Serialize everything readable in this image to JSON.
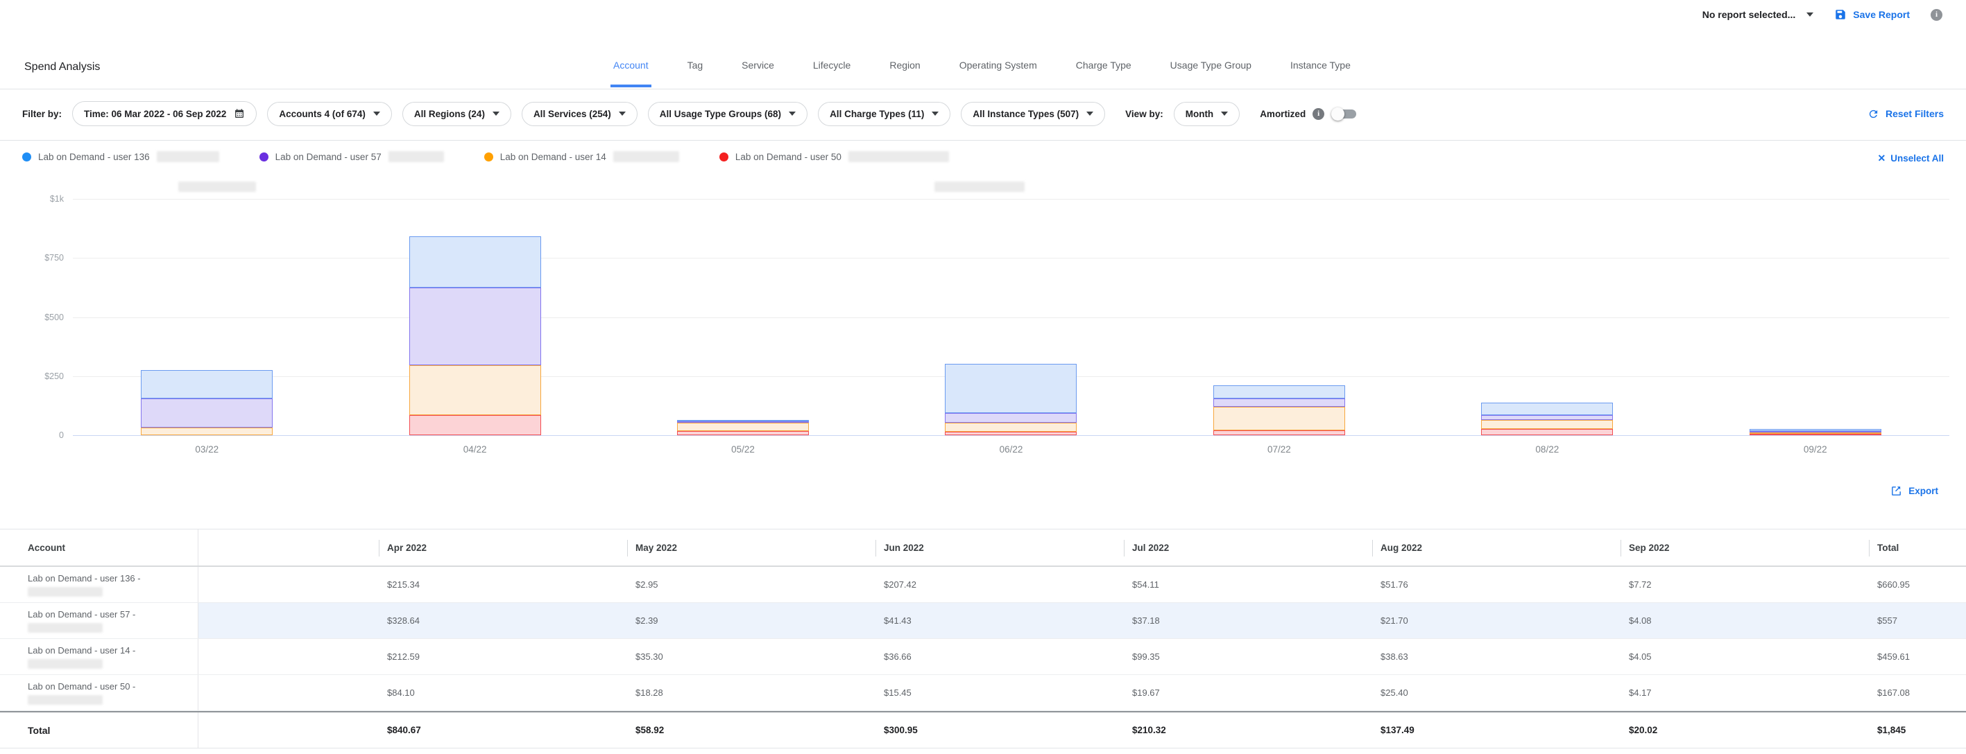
{
  "header": {
    "report_selector": "No report selected...",
    "save_report_label": "Save Report",
    "title": "Spend Analysis",
    "tabs": [
      {
        "label": "Account",
        "active": true
      },
      {
        "label": "Tag",
        "active": false
      },
      {
        "label": "Service",
        "active": false
      },
      {
        "label": "Lifecycle",
        "active": false
      },
      {
        "label": "Region",
        "active": false
      },
      {
        "label": "Operating System",
        "active": false
      },
      {
        "label": "Charge Type",
        "active": false
      },
      {
        "label": "Usage Type Group",
        "active": false
      },
      {
        "label": "Instance Type",
        "active": false
      }
    ]
  },
  "filter_bar": {
    "label": "Filter by:",
    "pills": [
      {
        "label": "Time: 06 Mar 2022 - 06 Sep 2022",
        "icon": "calendar-icon"
      },
      {
        "label": "Accounts 4 (of 674)",
        "icon": "caret-down-icon"
      },
      {
        "label": "All Regions (24)",
        "icon": "caret-down-icon"
      },
      {
        "label": "All Services (254)",
        "icon": "caret-down-icon"
      },
      {
        "label": "All Usage Type Groups (68)",
        "icon": "caret-down-icon"
      },
      {
        "label": "All Charge Types (11)",
        "icon": "caret-down-icon"
      },
      {
        "label": "All Instance Types (507)",
        "icon": "caret-down-icon"
      }
    ],
    "view_by_label": "View by:",
    "view_by_value": "Month",
    "amortized_label": "Amortized",
    "amortized_on": false,
    "reset_label": "Reset Filters"
  },
  "legend": {
    "unselect_all_label": "Unselect All",
    "items": [
      {
        "label": "Lab on Demand - user 136",
        "color": "#1f8ef5",
        "redact_width": 90
      },
      {
        "label": "Lab on Demand - user 57",
        "color": "#6a2fe0",
        "redact_width": 80
      },
      {
        "label": "Lab on Demand - user 14",
        "color": "#ffa000",
        "redact_width": 95
      },
      {
        "label": "Lab on Demand - user 50",
        "color": "#f42020",
        "redact_width": 145
      }
    ]
  },
  "chart_data": {
    "type": "bar",
    "stacked": true,
    "stack_order": "bottom-to-top",
    "categories": [
      "03/22",
      "04/22",
      "05/22",
      "06/22",
      "07/22",
      "08/22",
      "09/22"
    ],
    "series": [
      {
        "name": "Lab on Demand - user 50",
        "stroke": "#f34d52",
        "fill": "#fcd3d6",
        "values": [
          0.01,
          84.1,
          18.28,
          15.45,
          19.67,
          25.4,
          4.17
        ]
      },
      {
        "name": "Lab on Demand - user 14",
        "stroke": "#f7a73e",
        "fill": "#fdeedb",
        "values": [
          33.03,
          212.59,
          35.3,
          36.66,
          99.35,
          38.63,
          4.05
        ]
      },
      {
        "name": "Lab on Demand - user 57",
        "stroke": "#8374ee",
        "fill": "#ded9f9",
        "values": [
          121.58,
          328.64,
          2.39,
          41.43,
          37.18,
          21.7,
          4.08
        ]
      },
      {
        "name": "Lab on Demand - user 136",
        "stroke": "#6b9bf0",
        "fill": "#d9e7fb",
        "values": [
          121.65,
          215.34,
          2.95,
          207.42,
          54.11,
          51.76,
          7.72
        ]
      }
    ],
    "yticks": [
      "$1k",
      "$750",
      "$500",
      "$250",
      "0"
    ],
    "ylim": [
      0,
      1000
    ],
    "grid": true,
    "legend_position": "top"
  },
  "export_label": "Export",
  "table": {
    "columns": [
      "Account",
      "",
      "Apr 2022",
      "May 2022",
      "Jun 2022",
      "Jul 2022",
      "Aug 2022",
      "Sep 2022",
      "Total"
    ],
    "rows": [
      {
        "account": "Lab on Demand - user 136 -",
        "highlight": false,
        "values": [
          "",
          "$215.34",
          "$2.95",
          "$207.42",
          "$54.11",
          "$51.76",
          "$7.72",
          "$660.95"
        ]
      },
      {
        "account": "Lab on Demand - user 57 -",
        "highlight": true,
        "values": [
          "",
          "$328.64",
          "$2.39",
          "$41.43",
          "$37.18",
          "$21.70",
          "$4.08",
          "$557"
        ]
      },
      {
        "account": "Lab on Demand - user 14 -",
        "highlight": false,
        "values": [
          "",
          "$212.59",
          "$35.30",
          "$36.66",
          "$99.35",
          "$38.63",
          "$4.05",
          "$459.61"
        ]
      },
      {
        "account": "Lab on Demand - user 50 -",
        "highlight": false,
        "values": [
          "",
          "$84.10",
          "$18.28",
          "$15.45",
          "$19.67",
          "$25.40",
          "$4.17",
          "$167.08"
        ]
      }
    ],
    "total_row": {
      "label": "Total",
      "values": [
        "",
        "$840.67",
        "$58.92",
        "$300.95",
        "$210.32",
        "$137.49",
        "$20.02",
        "$1,845"
      ]
    }
  },
  "colors": {
    "accent_blue": "#1a73e8",
    "tab_active_blue": "#4285f4",
    "row_highlight": "#edf3fc"
  }
}
